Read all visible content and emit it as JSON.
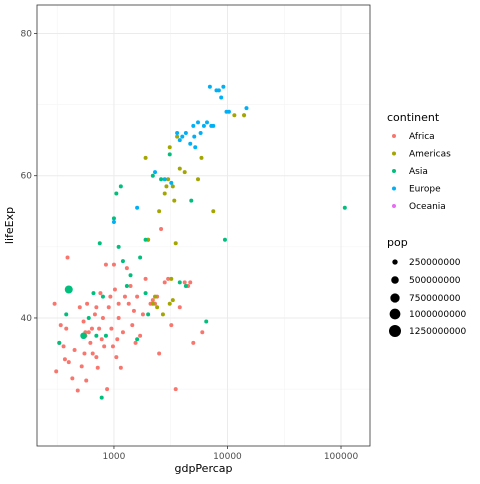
{
  "chart_data": {
    "type": "scatter",
    "title": "",
    "xlabel": "gdpPercap",
    "ylabel": "lifeExp",
    "x_scale": "log10",
    "xlim": [
      210,
      180000
    ],
    "ylim": [
      22,
      84
    ],
    "x_ticks": [
      1000,
      10000,
      100000
    ],
    "x_tick_labels": [
      "1000",
      "10000",
      "100000"
    ],
    "y_ticks": [
      40,
      60,
      80
    ],
    "y_tick_labels": [
      "40",
      "60",
      "80"
    ],
    "grid": true,
    "legend_position": "right",
    "color_legend": {
      "title": "continent",
      "entries": [
        {
          "label": "Africa",
          "color": "#F8766D"
        },
        {
          "label": "Americas",
          "color": "#A3A500"
        },
        {
          "label": "Asia",
          "color": "#00BF7D"
        },
        {
          "label": "Europe",
          "color": "#00B0F6"
        },
        {
          "label": "Oceania",
          "color": "#E76BF3"
        }
      ]
    },
    "size_legend": {
      "title": "pop",
      "entries": [
        {
          "label": "250000000",
          "value": 250000000
        },
        {
          "label": "500000000",
          "value": 500000000
        },
        {
          "label": "750000000",
          "value": 750000000
        },
        {
          "label": "1000000000",
          "value": 1000000000
        },
        {
          "label": "1250000000",
          "value": 1250000000
        }
      ]
    },
    "series": [
      {
        "name": "Africa",
        "points": [
          [
            300,
            42.0
          ],
          [
            310,
            32.5
          ],
          [
            330,
            36.5
          ],
          [
            340,
            39.0
          ],
          [
            360,
            36.0
          ],
          [
            370,
            34.2
          ],
          [
            380,
            38.5
          ],
          [
            390,
            48.5
          ],
          [
            400,
            33.8
          ],
          [
            430,
            31.5
          ],
          [
            450,
            35.5
          ],
          [
            480,
            29.8
          ],
          [
            500,
            41.5
          ],
          [
            520,
            33.2
          ],
          [
            540,
            39.5
          ],
          [
            550,
            35.0
          ],
          [
            560,
            37.5
          ],
          [
            570,
            31.2
          ],
          [
            580,
            42.0
          ],
          [
            600,
            38.0
          ],
          [
            620,
            36.5
          ],
          [
            650,
            35.0
          ],
          [
            680,
            40.5
          ],
          [
            700,
            34.5
          ],
          [
            700,
            41.5
          ],
          [
            720,
            33.0
          ],
          [
            740,
            38.5
          ],
          [
            760,
            43.5
          ],
          [
            780,
            37.0
          ],
          [
            800,
            40.0
          ],
          [
            820,
            36.0
          ],
          [
            850,
            47.5
          ],
          [
            870,
            30.0
          ],
          [
            900,
            41.5
          ],
          [
            930,
            43.0
          ],
          [
            950,
            38.5
          ],
          [
            980,
            36.0
          ],
          [
            1000,
            47.5
          ],
          [
            1020,
            44.0
          ],
          [
            1050,
            34.5
          ],
          [
            1070,
            37.0
          ],
          [
            1100,
            40.0
          ],
          [
            1100,
            42.0
          ],
          [
            1150,
            33.0
          ],
          [
            1200,
            38.0
          ],
          [
            1250,
            43.0
          ],
          [
            1300,
            47.0
          ],
          [
            1400,
            44.5
          ],
          [
            1450,
            39.0
          ],
          [
            1500,
            41.0
          ],
          [
            1550,
            36.5
          ],
          [
            1600,
            43.0
          ],
          [
            1700,
            37.5
          ],
          [
            1800,
            40.5
          ],
          [
            1900,
            45.5
          ],
          [
            2000,
            51.0
          ],
          [
            2100,
            42.0
          ],
          [
            2200,
            42.5
          ],
          [
            2400,
            43.0
          ],
          [
            2500,
            35.0
          ],
          [
            2600,
            52.5
          ],
          [
            2800,
            45.0
          ],
          [
            3000,
            45.5
          ],
          [
            3200,
            39.0
          ],
          [
            3500,
            30.0
          ],
          [
            3800,
            41.5
          ],
          [
            4200,
            45.0
          ],
          [
            4500,
            44.5
          ],
          [
            5000,
            36.5
          ],
          [
            6000,
            38.0
          ],
          [
            4700,
            45.0
          ],
          [
            2300,
            42.0
          ],
          [
            1350,
            42.0
          ],
          [
            640,
            38.5
          ],
          [
            560,
            38.0
          ]
        ]
      },
      {
        "name": "Americas",
        "points": [
          [
            1900,
            62.5
          ],
          [
            2000,
            51.0
          ],
          [
            2200,
            42.0
          ],
          [
            2300,
            43.0
          ],
          [
            2400,
            41.5
          ],
          [
            2500,
            55.0
          ],
          [
            2700,
            40.5
          ],
          [
            2800,
            57.5
          ],
          [
            2900,
            58.5
          ],
          [
            3000,
            59.5
          ],
          [
            3100,
            64.0
          ],
          [
            3200,
            45.5
          ],
          [
            3300,
            42.5
          ],
          [
            3400,
            56.5
          ],
          [
            3500,
            50.5
          ],
          [
            3600,
            65.5
          ],
          [
            3800,
            61.0
          ],
          [
            4200,
            60.5
          ],
          [
            5500,
            59.5
          ],
          [
            5900,
            62.5
          ],
          [
            7500,
            55.0
          ],
          [
            3300,
            58.5
          ],
          [
            3100,
            42.0
          ],
          [
            11500,
            68.5
          ],
          [
            14000,
            68.5
          ]
        ],
        "pops": [
          null,
          null,
          null,
          null,
          null,
          null,
          null,
          null,
          null,
          null,
          null,
          null,
          null,
          null,
          null,
          null,
          null,
          null,
          null,
          null,
          null,
          null,
          null,
          null,
          150000000
        ]
      },
      {
        "name": "Asia",
        "points": [
          [
            330,
            36.5
          ],
          [
            380,
            40.5
          ],
          [
            400,
            44.0
          ],
          [
            540,
            37.5
          ],
          [
            600,
            40.0
          ],
          [
            660,
            43.5
          ],
          [
            700,
            37.5
          ],
          [
            750,
            50.5
          ],
          [
            780,
            28.8
          ],
          [
            800,
            43.0
          ],
          [
            850,
            37.5
          ],
          [
            1000,
            54.0
          ],
          [
            1050,
            57.5
          ],
          [
            1100,
            50.0
          ],
          [
            1150,
            58.5
          ],
          [
            1200,
            48.0
          ],
          [
            1300,
            44.5
          ],
          [
            1400,
            46.0
          ],
          [
            1600,
            37.0
          ],
          [
            1700,
            48.5
          ],
          [
            1900,
            51.0
          ],
          [
            2000,
            40.5
          ],
          [
            2200,
            60.0
          ],
          [
            2600,
            59.5
          ],
          [
            3100,
            63.0
          ],
          [
            3800,
            45.0
          ],
          [
            4300,
            44.5
          ],
          [
            4800,
            56.5
          ],
          [
            6500,
            39.5
          ],
          [
            9500,
            51.0
          ],
          [
            108000,
            55.5
          ],
          [
            540,
            37.5
          ],
          [
            1900,
            43.5
          ]
        ],
        "pops": [
          null,
          null,
          556000000,
          null,
          null,
          null,
          null,
          null,
          null,
          null,
          null,
          null,
          null,
          null,
          null,
          null,
          null,
          null,
          null,
          null,
          null,
          null,
          null,
          null,
          null,
          null,
          null,
          null,
          null,
          null,
          null,
          372000000,
          null
        ]
      },
      {
        "name": "Europe",
        "points": [
          [
            1000,
            53.5
          ],
          [
            1600,
            55.5
          ],
          [
            2300,
            60.5
          ],
          [
            2800,
            59.5
          ],
          [
            3200,
            59.0
          ],
          [
            3600,
            66.0
          ],
          [
            3800,
            65.0
          ],
          [
            4000,
            65.5
          ],
          [
            4300,
            66.0
          ],
          [
            4700,
            64.5
          ],
          [
            5000,
            67.0
          ],
          [
            5100,
            65.5
          ],
          [
            5500,
            67.5
          ],
          [
            5800,
            66.0
          ],
          [
            6200,
            67.0
          ],
          [
            6600,
            67.5
          ],
          [
            7000,
            72.5
          ],
          [
            7500,
            67.0
          ],
          [
            8000,
            72.0
          ],
          [
            8400,
            72.0
          ],
          [
            8800,
            71.0
          ],
          [
            9200,
            72.5
          ],
          [
            9800,
            69.0
          ],
          [
            10300,
            69.0
          ],
          [
            14700,
            69.5
          ],
          [
            5200,
            64.0
          ],
          [
            7200,
            67.0
          ]
        ]
      },
      {
        "name": "Oceania",
        "points": []
      }
    ]
  }
}
